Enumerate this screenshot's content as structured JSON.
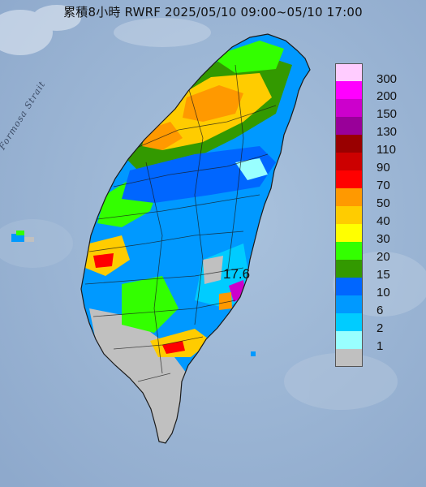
{
  "title": "累積8小時 RWRF 2025/05/10 09:00~05/10 17:00",
  "sea_label": "Formosa Strait",
  "max_value_label": "17.6",
  "legend": {
    "ticks": [
      "300",
      "200",
      "150",
      "130",
      "110",
      "90",
      "70",
      "50",
      "40",
      "30",
      "20",
      "15",
      "10",
      "6",
      "2",
      "1"
    ],
    "colors": [
      "#ffccff",
      "#ff00ff",
      "#cc00cc",
      "#990099",
      "#990000",
      "#cc0000",
      "#ff0000",
      "#ff9900",
      "#ffcc00",
      "#ffff00",
      "#33ff00",
      "#339900",
      "#0066ff",
      "#0099ff",
      "#00ccff",
      "#99ffff",
      "#c0c0c0"
    ]
  }
}
